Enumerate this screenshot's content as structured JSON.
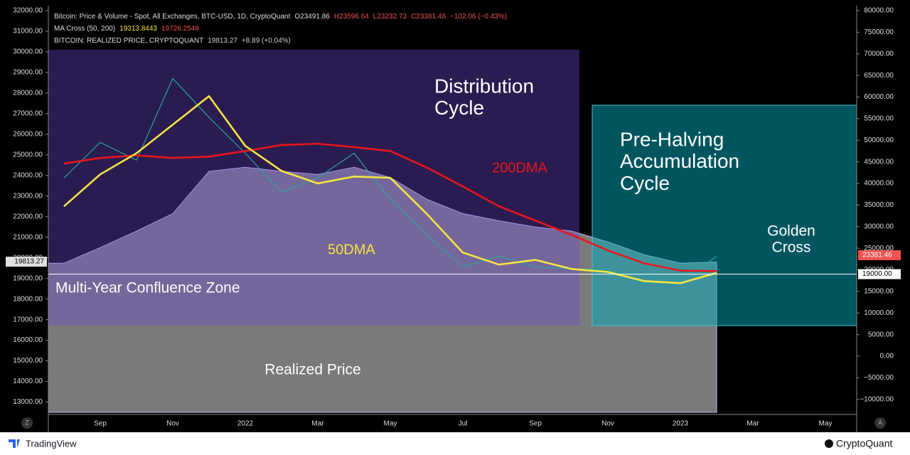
{
  "chart_data": {
    "type": "line",
    "legend_lines": [
      [
        "Bitcoin: Price & Volume - Spot, All Exchanges, BTC-USD, 1D, CryptoQuant",
        "O23491.86",
        "H23596.64",
        "L23232.73",
        "C23381.46",
        "−102.06 (−0.43%)"
      ],
      [
        "MA Cross (50, 200)",
        "19313.8443",
        "19726.2548"
      ],
      [
        "BITCOIN: REALIZED PRICE, CRYPTOQUANT",
        "19813.27",
        "+8.89 (+0.04%)"
      ]
    ],
    "categories": [
      null,
      "Sep",
      null,
      "Nov",
      null,
      "2022",
      null,
      "Mar",
      null,
      "May",
      null,
      "Jul",
      null,
      "Sep",
      null,
      "Nov",
      null,
      "2023",
      null,
      "Mar",
      null,
      "May"
    ],
    "series": [
      {
        "name": "Realized Price",
        "color": "#8f8f8f",
        "fill": true,
        "axis": "y",
        "values": [
          19740,
          20500,
          21300,
          22150,
          24200,
          24400,
          24200,
          24050,
          24400,
          23900,
          22850,
          22150,
          21800,
          21500,
          21300,
          20770,
          20150,
          19740,
          19800,
          null,
          null,
          null
        ]
      },
      {
        "name": "Bitcoin",
        "color": "#26a69a",
        "axis": "y2",
        "values": [
          41270,
          49500,
          45400,
          64300,
          55300,
          47000,
          38000,
          41300,
          47000,
          36300,
          28100,
          20700,
          23100,
          20700,
          20200,
          20200,
          16900,
          17400,
          23100,
          null,
          null,
          null
        ]
      },
      {
        "name": "200DMA",
        "color": "#e8151b",
        "axis": "y2",
        "values": [
          44600,
          45900,
          46500,
          45900,
          46200,
          47500,
          48900,
          49200,
          48400,
          47500,
          43700,
          39300,
          34700,
          31400,
          28100,
          24500,
          21500,
          19800,
          19700,
          null,
          null,
          null
        ]
      },
      {
        "name": "50DMA",
        "color": "#f5e642",
        "axis": "y2",
        "values": [
          34700,
          42100,
          47000,
          53600,
          60200,
          48700,
          42900,
          40000,
          41600,
          41300,
          33000,
          24000,
          21200,
          22300,
          20200,
          19500,
          17400,
          16900,
          19300,
          null,
          null,
          null
        ]
      }
    ],
    "ylim": [
      12500,
      32000
    ],
    "yticks": [
      {
        "value": 13000,
        "label": "13000.00"
      },
      {
        "value": 14000,
        "label": "14000.00"
      },
      {
        "value": 15000,
        "label": "15000.00"
      },
      {
        "value": 16000,
        "label": "16000.00"
      },
      {
        "value": 17000,
        "label": "17000.00"
      },
      {
        "value": 18000,
        "label": "18000.00"
      },
      {
        "value": 19000,
        "label": "19000.00"
      },
      {
        "value": 20000,
        "label": "20000.00"
      },
      {
        "value": 21000,
        "label": "21000.00"
      },
      {
        "value": 22000,
        "label": "22000.00"
      },
      {
        "value": 23000,
        "label": "23000.00"
      },
      {
        "value": 24000,
        "label": "24000.00"
      },
      {
        "value": 25000,
        "label": "25000.00"
      },
      {
        "value": 26000,
        "label": "26000.00"
      },
      {
        "value": 27000,
        "label": "27000.00"
      },
      {
        "value": 28000,
        "label": "28000.00"
      },
      {
        "value": 29000,
        "label": "29000.00"
      },
      {
        "value": 30000,
        "label": "30000.00"
      },
      {
        "value": 31000,
        "label": "31000.00"
      },
      {
        "value": 32000,
        "label": "32000.00"
      }
    ],
    "y2lim": [
      -13000,
      80000
    ],
    "y2ticks": [
      {
        "value": -10000,
        "label": "−10000.00"
      },
      {
        "value": -5000,
        "label": "−5000.00"
      },
      {
        "value": 0,
        "label": "0.00"
      },
      {
        "value": 5000,
        "label": "5000.00"
      },
      {
        "value": 10000,
        "label": "10000.00"
      },
      {
        "value": 15000,
        "label": "15000.00"
      },
      {
        "value": 20000,
        "label": "20000.00"
      },
      {
        "value": 25000,
        "label": "25000.00"
      },
      {
        "value": 30000,
        "label": "30000.00"
      },
      {
        "value": 35000,
        "label": "35000.00"
      },
      {
        "value": 40000,
        "label": "40000.00"
      },
      {
        "value": 45000,
        "label": "45000.00"
      },
      {
        "value": 50000,
        "label": "50000.00"
      },
      {
        "value": 55000,
        "label": "55000.00"
      },
      {
        "value": 60000,
        "label": "60000.00"
      },
      {
        "value": 65000,
        "label": "65000.00"
      },
      {
        "value": 70000,
        "label": "70000.00"
      },
      {
        "value": 75000,
        "label": "75000.00"
      },
      {
        "value": 80000,
        "label": "80000.00"
      }
    ],
    "hline": {
      "value": 19000,
      "label": "19000.00"
    },
    "price_label": {
      "value": 23381.46,
      "label": "23381.46"
    },
    "realized_label": {
      "value": 19813.27,
      "label": "19813.27"
    },
    "annotations": [
      {
        "lines": [
          "Distribution",
          "Cycle"
        ],
        "color": "#ffffff"
      },
      {
        "lines": [
          "Pre-Halving",
          "Accumulation",
          "Cycle"
        ],
        "color": "#ffffff"
      },
      {
        "lines": [
          "200DMA"
        ],
        "color": "#e8151b"
      },
      {
        "lines": [
          "50DMA"
        ],
        "color": "#f5e642"
      },
      {
        "lines": [
          "Multi-Year Confluence Zone"
        ],
        "color": "#ffffff"
      },
      {
        "lines": [
          "Realized Price"
        ],
        "color": "#ffffff"
      },
      {
        "lines": [
          "Golden",
          "Cross"
        ],
        "color": "#ffffff"
      }
    ],
    "footer": {
      "left": "TradingView",
      "right": "CryptoQuant",
      "left_button": "Z",
      "right_button": "A"
    }
  }
}
